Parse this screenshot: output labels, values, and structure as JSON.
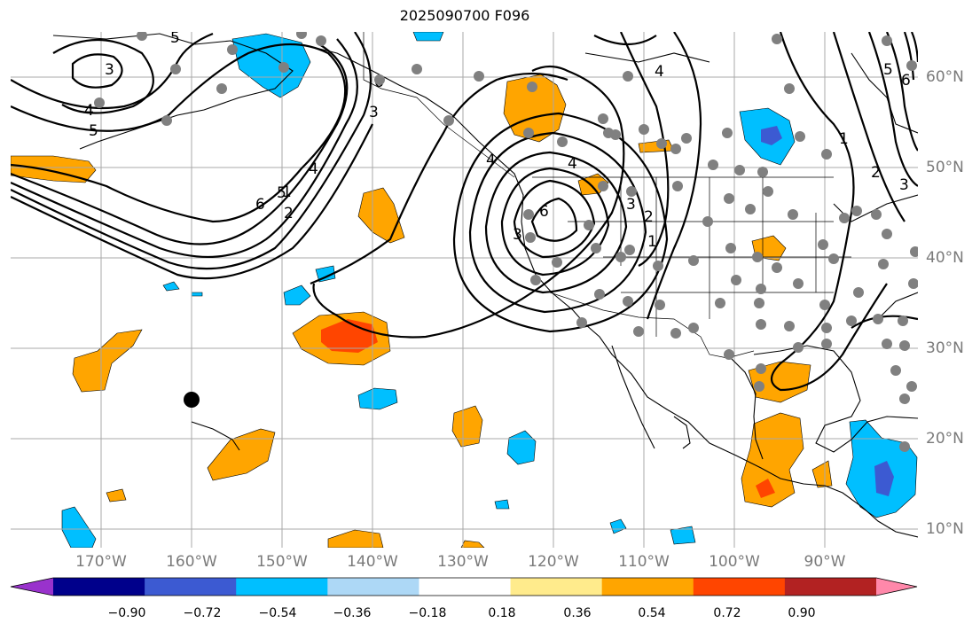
{
  "title": "2025090700 F096",
  "map": {
    "projection": "equirectangular",
    "lon_range": [
      -180,
      -80
    ],
    "lat_range": [
      8,
      65
    ],
    "gridlines": true,
    "lon_labels": [
      "170°W",
      "160°W",
      "150°W",
      "140°W",
      "130°W",
      "120°W",
      "110°W",
      "100°W",
      "90°W"
    ],
    "lat_labels": [
      "60°N",
      "50°N",
      "40°N",
      "30°N",
      "20°N",
      "10°N"
    ],
    "contour_labels": [
      "3",
      "4",
      "5",
      "6",
      "2",
      "1",
      "3",
      "4",
      "5",
      "6",
      "4",
      "3",
      "2",
      "1",
      "1",
      "2",
      "3",
      "4",
      "5",
      "6",
      "3",
      "4",
      "5",
      "6"
    ],
    "station_marker": {
      "lon": -160,
      "lat": 24.3,
      "color": "#000000"
    },
    "station_color": "#808080",
    "anomaly_fill_colors": {
      "weak_positive": "#ffa500",
      "strong_positive": "#ff4500",
      "weak_negative": "#00bfff",
      "strong_negative": "#3c5ad2"
    }
  },
  "colorbar": {
    "ticks": [
      "−0.90",
      "−0.72",
      "−0.54",
      "−0.36",
      "−0.18",
      "0.18",
      "0.36",
      "0.54",
      "0.72",
      "0.90"
    ],
    "colors": [
      "#9932cc",
      "#00008b",
      "#3c5ad2",
      "#00bfff",
      "#add8f6",
      "#ffffff",
      "#ffeb8c",
      "#ffa500",
      "#ff4500",
      "#b22222",
      "#ff88aa"
    ]
  }
}
